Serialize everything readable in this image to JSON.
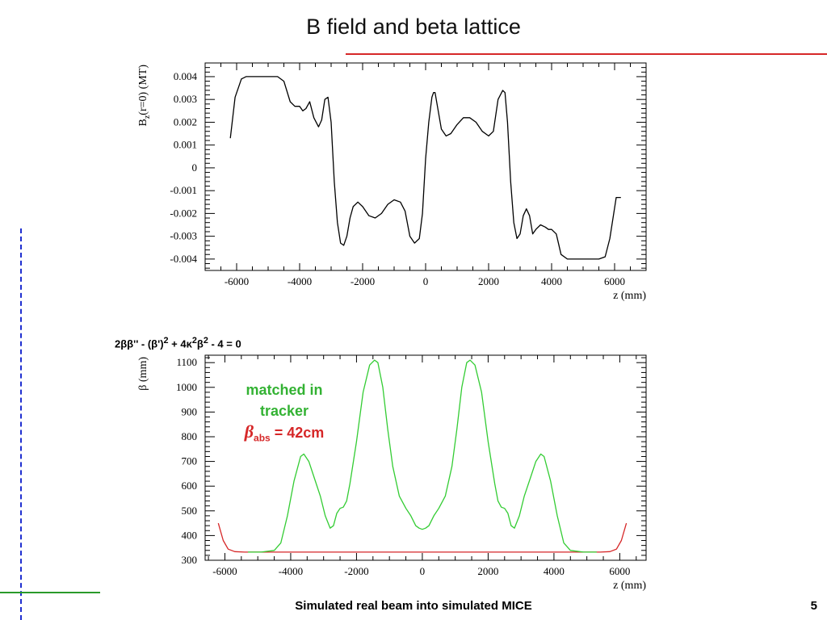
{
  "slide": {
    "title": "B field and beta lattice",
    "footer": "Simulated real beam into simulated MICE",
    "page_number": "5"
  },
  "equation": {
    "text_parts": [
      "2ββ'' - (β')",
      "2",
      " + 4κ",
      "2",
      "β",
      "2",
      " - 4 = 0"
    ]
  },
  "annotation": {
    "line1": "matched in",
    "line2": "tracker",
    "beta_symbol": "β",
    "beta_sub": "abs",
    "beta_value": " = 42cm",
    "color_green": "#33b233",
    "color_red": "#d62728"
  },
  "chart_data": [
    {
      "type": "line",
      "title": "",
      "xlabel": "z (mm)",
      "ylabel_parts": [
        "B",
        "z",
        "(r=0) (MT)"
      ],
      "xlim": [
        -7000,
        7000
      ],
      "ylim": [
        -0.0045,
        0.0046
      ],
      "xticks": [
        -6000,
        -4000,
        -2000,
        0,
        2000,
        4000,
        6000
      ],
      "xtick_labels": [
        "-6000",
        "-4000",
        "-2000",
        "0",
        "2000",
        "4000",
        "6000"
      ],
      "yticks": [
        0.004,
        0.003,
        0.002,
        0.001,
        0,
        -0.001,
        -0.002,
        -0.003,
        -0.004
      ],
      "ytick_labels": [
        "0.004",
        "0.003",
        "0.002",
        "0.001",
        "0",
        "-0.001",
        "-0.002",
        "-0.003",
        "-0.004"
      ],
      "series": [
        {
          "color": "#000000",
          "x": [
            -6200,
            -6050,
            -5850,
            -5700,
            -5500,
            -5000,
            -4700,
            -4500,
            -4300,
            -4150,
            -4000,
            -3900,
            -3800,
            -3680,
            -3550,
            -3400,
            -3300,
            -3200,
            -3100,
            -3000,
            -2900,
            -2800,
            -2700,
            -2600,
            -2500,
            -2400,
            -2300,
            -2150,
            -2000,
            -1800,
            -1600,
            -1400,
            -1200,
            -1000,
            -800,
            -650,
            -500,
            -350,
            -200,
            -100,
            0,
            100,
            200,
            250,
            300,
            400,
            500,
            650,
            800,
            1000,
            1200,
            1400,
            1600,
            1800,
            2000,
            2150,
            2300,
            2450,
            2520,
            2600,
            2700,
            2800,
            2900,
            3000,
            3100,
            3200,
            3300,
            3400,
            3500,
            3650,
            3800,
            3900,
            4000,
            4150,
            4300,
            4500,
            4700,
            5000,
            5500,
            5700,
            5850,
            6050,
            6200
          ],
          "y": [
            0.0013,
            0.0031,
            0.0039,
            0.004,
            0.004,
            0.004,
            0.004,
            0.0038,
            0.0029,
            0.0027,
            0.0027,
            0.0025,
            0.0026,
            0.0029,
            0.0022,
            0.0018,
            0.0021,
            0.003,
            0.0031,
            0.002,
            -0.0006,
            -0.0024,
            -0.0033,
            -0.0034,
            -0.003,
            -0.0022,
            -0.0017,
            -0.0015,
            -0.0017,
            -0.0021,
            -0.0022,
            -0.002,
            -0.0016,
            -0.0014,
            -0.0015,
            -0.0019,
            -0.003,
            -0.0033,
            -0.0031,
            -0.002,
            0.0004,
            0.002,
            0.0031,
            0.0033,
            0.0033,
            0.0025,
            0.0017,
            0.0014,
            0.0015,
            0.0019,
            0.0022,
            0.0022,
            0.002,
            0.0016,
            0.0014,
            0.0016,
            0.003,
            0.0034,
            0.0033,
            0.002,
            -0.0006,
            -0.0024,
            -0.0031,
            -0.0029,
            -0.0021,
            -0.0018,
            -0.0021,
            -0.0029,
            -0.0027,
            -0.0025,
            -0.0026,
            -0.0027,
            -0.0027,
            -0.0029,
            -0.0038,
            -0.004,
            -0.004,
            -0.004,
            -0.004,
            -0.0039,
            -0.0031,
            -0.0013,
            -0.0013
          ]
        }
      ]
    },
    {
      "type": "line",
      "title": "",
      "xlabel": "z (mm)",
      "ylabel": "β (mm)",
      "xlim": [
        -6600,
        6800
      ],
      "ylim": [
        300,
        1130
      ],
      "xticks": [
        -6000,
        -4000,
        -2000,
        0,
        2000,
        4000,
        6000
      ],
      "xtick_labels": [
        "-6000",
        "-4000",
        "-2000",
        "0",
        "2000",
        "4000",
        "6000"
      ],
      "yticks": [
        300,
        400,
        500,
        600,
        700,
        800,
        900,
        1000,
        1100
      ],
      "ytick_labels": [
        "300",
        "400",
        "500",
        "600",
        "700",
        "800",
        "900",
        "1000",
        "1100"
      ],
      "series": [
        {
          "color": "#d62728",
          "x": [
            -6200,
            -6050,
            -5900,
            -5700,
            -5400,
            -5200,
            5200,
            5400,
            5700,
            5900,
            6050,
            6200
          ],
          "y": [
            450,
            380,
            345,
            335,
            333,
            333,
            333,
            333,
            335,
            345,
            380,
            450
          ]
        },
        {
          "color": "#33cc33",
          "x": [
            -5300,
            -4900,
            -4500,
            -4300,
            -4100,
            -3900,
            -3700,
            -3600,
            -3450,
            -3300,
            -3100,
            -2950,
            -2800,
            -2700,
            -2600,
            -2500,
            -2400,
            -2300,
            -2200,
            -2000,
            -1800,
            -1600,
            -1450,
            -1350,
            -1200,
            -1050,
            -900,
            -700,
            -500,
            -350,
            -200,
            -100,
            0,
            100,
            200,
            350,
            500,
            700,
            900,
            1050,
            1200,
            1350,
            1450,
            1600,
            1800,
            2000,
            2200,
            2300,
            2400,
            2500,
            2600,
            2700,
            2800,
            2950,
            3100,
            3300,
            3450,
            3600,
            3700,
            3900,
            4100,
            4300,
            4500,
            4900,
            5300
          ],
          "y": [
            333,
            333,
            340,
            370,
            480,
            620,
            720,
            730,
            700,
            640,
            560,
            480,
            430,
            440,
            490,
            510,
            515,
            540,
            610,
            780,
            980,
            1090,
            1110,
            1100,
            1000,
            830,
            680,
            560,
            510,
            480,
            440,
            430,
            425,
            430,
            440,
            480,
            510,
            560,
            680,
            830,
            1000,
            1100,
            1110,
            1090,
            980,
            780,
            610,
            540,
            515,
            510,
            490,
            440,
            430,
            480,
            560,
            640,
            700,
            730,
            720,
            620,
            480,
            370,
            340,
            333,
            333
          ]
        }
      ]
    }
  ]
}
